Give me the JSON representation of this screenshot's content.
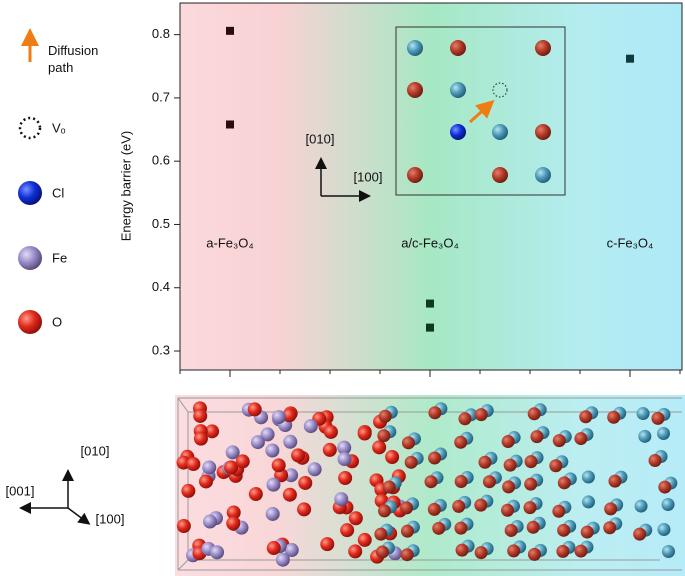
{
  "chart_data": {
    "type": "scatter",
    "y_label": "Energy barrier (eV)",
    "categories": [
      "a-Fe₃O₄",
      "a/c-Fe₃O₄",
      "c-Fe₃O₄"
    ],
    "series": [
      {
        "values": [
          0.806,
          0.375,
          0.762
        ]
      },
      {
        "values": [
          0.658,
          0.337,
          null
        ]
      }
    ],
    "point_colors": [
      "#2a0d0d",
      "#0d3a1e",
      "#0d3a3a"
    ],
    "ylim": [
      0.27,
      0.85
    ],
    "yticks": [
      0.3,
      0.4,
      0.5,
      0.6,
      0.7,
      0.8
    ],
    "annotations": {
      "legend": [
        "Diffusion path",
        "Vₒ",
        "Cl",
        "Fe",
        "O"
      ],
      "inset_axes": [
        "[010]",
        "[100]"
      ],
      "structure_axes": [
        "[010]",
        "[001]",
        "[100]"
      ]
    }
  }
}
